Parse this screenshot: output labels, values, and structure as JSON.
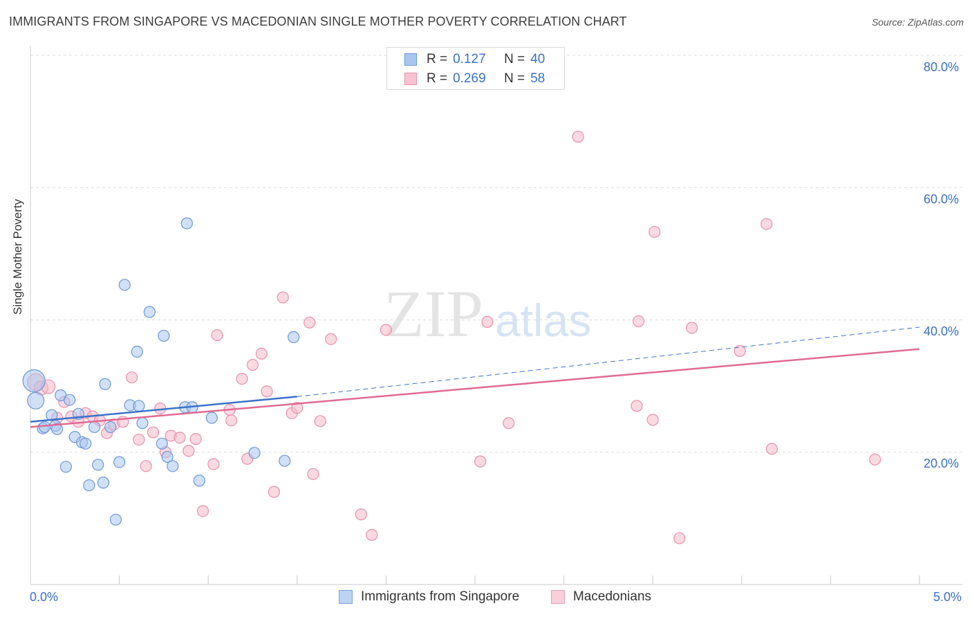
{
  "chart_data": {
    "type": "scatter",
    "title": "IMMIGRANTS FROM SINGAPORE VS MACEDONIAN SINGLE MOTHER POVERTY CORRELATION CHART",
    "source": "Source: ZipAtlas.com",
    "ylabel": "Single Mother Poverty",
    "xlabel": "",
    "xlim": [
      0,
      5
    ],
    "ylim": [
      0,
      80
    ],
    "x_tick_labels": [
      "0.0%",
      "5.0%"
    ],
    "y_ticks": [
      20,
      40,
      60,
      80
    ],
    "y_tick_labels": [
      "20.0%",
      "40.0%",
      "60.0%",
      "80.0%"
    ],
    "watermark": "ZIPatlas",
    "colors": {
      "blue_fill": "#a9c7ee",
      "blue_stroke": "#6d97d6",
      "blue_line": "#3a72c9",
      "pink_fill": "#f6b9cb",
      "pink_stroke": "#e890ad",
      "pink_line": "#e06a93",
      "axis_text": "#3a6fc9"
    },
    "legend": [
      {
        "r_label": "R =",
        "r_value": "0.127",
        "n_label": "N =",
        "n_value": "40"
      },
      {
        "r_label": "R =",
        "r_value": "0.269",
        "n_label": "N =",
        "n_value": "58"
      }
    ],
    "series": [
      {
        "name": "Immigrants from Singapore",
        "color": "blue",
        "trend": {
          "x_start": 0,
          "y_start": 24.6,
          "x_end": 1.5,
          "y_end": 28.4,
          "x_dash_end": 5.0,
          "y_dash_end": 38.9
        },
        "points": [
          [
            0.02,
            30.8,
            16
          ],
          [
            0.03,
            27.8,
            12
          ],
          [
            0.07,
            23.6,
            8
          ],
          [
            0.08,
            23.8,
            8
          ],
          [
            0.12,
            25.6,
            8
          ],
          [
            0.14,
            24.0,
            8
          ],
          [
            0.15,
            23.5,
            8
          ],
          [
            0.17,
            28.6,
            8
          ],
          [
            0.2,
            17.8,
            8
          ],
          [
            0.22,
            27.9,
            8
          ],
          [
            0.25,
            22.3,
            8
          ],
          [
            0.27,
            25.8,
            8
          ],
          [
            0.29,
            21.5,
            8
          ],
          [
            0.31,
            21.3,
            8
          ],
          [
            0.33,
            15.0,
            8
          ],
          [
            0.36,
            23.8,
            8
          ],
          [
            0.38,
            18.1,
            8
          ],
          [
            0.41,
            15.4,
            8
          ],
          [
            0.42,
            30.3,
            8
          ],
          [
            0.45,
            23.8,
            8
          ],
          [
            0.48,
            9.8,
            8
          ],
          [
            0.5,
            18.5,
            8
          ],
          [
            0.53,
            45.3,
            8
          ],
          [
            0.56,
            27.1,
            8
          ],
          [
            0.6,
            35.2,
            8
          ],
          [
            0.61,
            27.0,
            8
          ],
          [
            0.63,
            24.4,
            8
          ],
          [
            0.67,
            41.2,
            8
          ],
          [
            0.74,
            21.3,
            8
          ],
          [
            0.75,
            37.6,
            8
          ],
          [
            0.77,
            19.3,
            8
          ],
          [
            0.8,
            17.9,
            8
          ],
          [
            0.87,
            26.8,
            8
          ],
          [
            0.88,
            54.6,
            8
          ],
          [
            0.91,
            26.8,
            8
          ],
          [
            0.95,
            15.7,
            8
          ],
          [
            1.02,
            25.2,
            8
          ],
          [
            1.26,
            19.9,
            8
          ],
          [
            1.43,
            18.7,
            8
          ],
          [
            1.48,
            37.4,
            8
          ]
        ]
      },
      {
        "name": "Macedonians",
        "color": "pink",
        "trend": {
          "x_start": 0,
          "y_start": 23.8,
          "x_end": 5.0,
          "y_end": 35.6
        },
        "points": [
          [
            0.03,
            30.6,
            12
          ],
          [
            0.06,
            29.7,
            10
          ],
          [
            0.1,
            29.9,
            10
          ],
          [
            0.15,
            25.2,
            8
          ],
          [
            0.19,
            27.6,
            8
          ],
          [
            0.23,
            25.4,
            8
          ],
          [
            0.27,
            24.6,
            8
          ],
          [
            0.31,
            25.9,
            8
          ],
          [
            0.35,
            25.4,
            8
          ],
          [
            0.39,
            24.8,
            8
          ],
          [
            0.43,
            22.9,
            8
          ],
          [
            0.47,
            24.2,
            8
          ],
          [
            0.52,
            24.6,
            8
          ],
          [
            0.57,
            31.3,
            8
          ],
          [
            0.61,
            21.9,
            8
          ],
          [
            0.65,
            17.9,
            8
          ],
          [
            0.69,
            23.0,
            8
          ],
          [
            0.73,
            26.6,
            8
          ],
          [
            0.76,
            20.0,
            8
          ],
          [
            0.79,
            22.5,
            8
          ],
          [
            0.84,
            22.2,
            8
          ],
          [
            0.89,
            20.2,
            8
          ],
          [
            0.93,
            22.0,
            8
          ],
          [
            0.97,
            11.1,
            8
          ],
          [
            1.03,
            18.2,
            8
          ],
          [
            1.05,
            37.7,
            8
          ],
          [
            1.12,
            26.4,
            8
          ],
          [
            1.13,
            24.8,
            8
          ],
          [
            1.19,
            31.1,
            8
          ],
          [
            1.22,
            19.0,
            8
          ],
          [
            1.25,
            33.2,
            8
          ],
          [
            1.3,
            34.9,
            8
          ],
          [
            1.33,
            29.2,
            8
          ],
          [
            1.37,
            14.0,
            8
          ],
          [
            1.42,
            43.4,
            8
          ],
          [
            1.47,
            25.9,
            8
          ],
          [
            1.5,
            26.7,
            8
          ],
          [
            1.57,
            39.6,
            8
          ],
          [
            1.59,
            16.7,
            8
          ],
          [
            1.63,
            24.7,
            8
          ],
          [
            1.69,
            37.1,
            8
          ],
          [
            1.86,
            10.6,
            8
          ],
          [
            1.92,
            7.5,
            8
          ],
          [
            2.0,
            38.5,
            8
          ],
          [
            2.53,
            18.6,
            8
          ],
          [
            2.57,
            39.7,
            8
          ],
          [
            2.69,
            24.4,
            8
          ],
          [
            3.08,
            67.7,
            8
          ],
          [
            3.41,
            27.0,
            8
          ],
          [
            3.42,
            39.8,
            8
          ],
          [
            3.5,
            24.9,
            8
          ],
          [
            3.51,
            53.3,
            8
          ],
          [
            3.65,
            7.0,
            8
          ],
          [
            3.72,
            38.8,
            8
          ],
          [
            3.99,
            35.3,
            8
          ],
          [
            4.14,
            54.5,
            8
          ],
          [
            4.17,
            20.5,
            8
          ],
          [
            4.75,
            18.9,
            8
          ]
        ]
      }
    ]
  }
}
